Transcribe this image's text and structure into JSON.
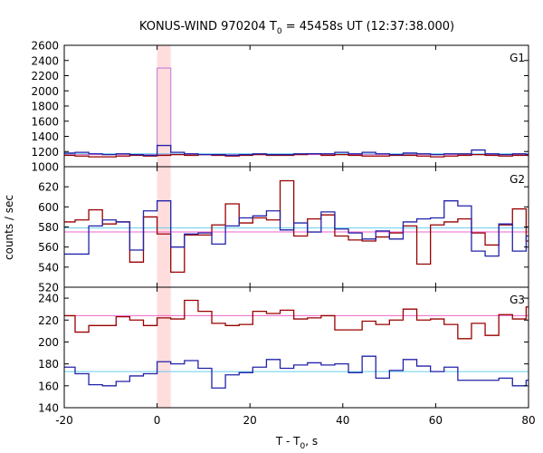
{
  "chart_data": {
    "type": "line",
    "title": "KONUS-WIND 970204 T",
    "title_sub": "0",
    "title_rest": " = 45458s UT (12:37:38.000)",
    "xlabel": "T - T",
    "xlabel_sub": "0",
    "xlabel_rest": ", s",
    "ylabel": "counts / sec",
    "xlim": [
      -20,
      80
    ],
    "x_ticks": [
      -20,
      0,
      20,
      40,
      60,
      80
    ],
    "highlight_interval": [
      0,
      2.944
    ],
    "colors": {
      "red": "#990000",
      "blue": "#2222aa",
      "red_mean": "#ee66cc",
      "blue_mean": "#66ccee",
      "highlight": "#ffdddd",
      "spike": "#cc88dd"
    },
    "bin_edges": [
      -20.608,
      -17.664,
      -14.72,
      -11.776,
      -8.832,
      -5.888,
      -2.944,
      0,
      2.944,
      5.888,
      8.832,
      11.776,
      14.72,
      17.664,
      20.608,
      23.552,
      26.496,
      29.44,
      32.384,
      35.328,
      38.272,
      41.216,
      44.16,
      47.104,
      50.048,
      52.992,
      55.936,
      58.88,
      61.824,
      64.768,
      67.712,
      70.656,
      73.6,
      76.544,
      79.488,
      82.432
    ],
    "panels": [
      {
        "label": "G1",
        "ylim": [
          1000,
          2600
        ],
        "y_ticks": [
          1000,
          1200,
          1400,
          1600,
          1800,
          2000,
          2200,
          2400,
          2600
        ],
        "mean_red": 1160,
        "mean_blue": 1170,
        "spike": {
          "x0": 0,
          "x1": 2.944,
          "value": 2300
        },
        "series": [
          {
            "color": "red",
            "values": [
              1150,
              1140,
              1130,
              1130,
              1140,
              1150,
              1140,
              1150,
              1160,
              1150,
              1160,
              1150,
              1140,
              1150,
              1160,
              1150,
              1150,
              1160,
              1170,
              1150,
              1160,
              1150,
              1140,
              1140,
              1150,
              1150,
              1140,
              1130,
              1140,
              1150,
              1160,
              1150,
              1140,
              1150,
              1150
            ]
          },
          {
            "color": "blue",
            "values": [
              1180,
              1190,
              1170,
              1160,
              1170,
              1160,
              1150,
              1280,
              1190,
              1170,
              1160,
              1160,
              1150,
              1160,
              1170,
              1160,
              1160,
              1170,
              1170,
              1170,
              1190,
              1170,
              1190,
              1170,
              1160,
              1180,
              1170,
              1160,
              1170,
              1170,
              1220,
              1170,
              1160,
              1170,
              1160
            ]
          }
        ]
      },
      {
        "label": "G2",
        "ylim": [
          520,
          640
        ],
        "y_ticks": [
          520,
          540,
          560,
          580,
          600,
          620
        ],
        "mean_red": 575,
        "mean_blue": 579,
        "series": [
          {
            "color": "red",
            "values": [
              585,
              587,
              597,
              583,
              585,
              545,
              590,
              573,
              535,
              572,
              572,
              582,
              603,
              584,
              589,
              587,
              626,
              571,
              588,
              592,
              571,
              567,
              566,
              570,
              574,
              581,
              543,
              582,
              585,
              588,
              574,
              562,
              582,
              598,
              566
            ]
          },
          {
            "color": "blue",
            "values": [
              553,
              553,
              581,
              587,
              585,
              557,
              596,
              606,
              560,
              573,
              574,
              563,
              581,
              589,
              591,
              596,
              577,
              584,
              575,
              595,
              578,
              574,
              568,
              576,
              568,
              585,
              588,
              589,
              606,
              601,
              556,
              551,
              583,
              556,
              571
            ]
          }
        ]
      },
      {
        "label": "G3",
        "ylim": [
          140,
          250
        ],
        "y_ticks": [
          140,
          160,
          180,
          200,
          220,
          240
        ],
        "mean_red": 224,
        "mean_blue": 173,
        "series": [
          {
            "color": "red",
            "values": [
              224,
              209,
              215,
              215,
              223,
              220,
              215,
              222,
              221,
              238,
              228,
              217,
              215,
              216,
              228,
              226,
              229,
              221,
              222,
              224,
              211,
              211,
              219,
              216,
              220,
              230,
              220,
              221,
              216,
              203,
              217,
              206,
              225,
              221,
              232
            ]
          },
          {
            "color": "blue",
            "values": [
              177,
              171,
              161,
              160,
              164,
              169,
              171,
              182,
              180,
              183,
              176,
              158,
              170,
              172,
              177,
              184,
              176,
              179,
              181,
              179,
              180,
              172,
              187,
              167,
              174,
              184,
              178,
              173,
              177,
              165,
              165,
              165,
              167,
              160,
              165
            ]
          }
        ]
      }
    ]
  }
}
